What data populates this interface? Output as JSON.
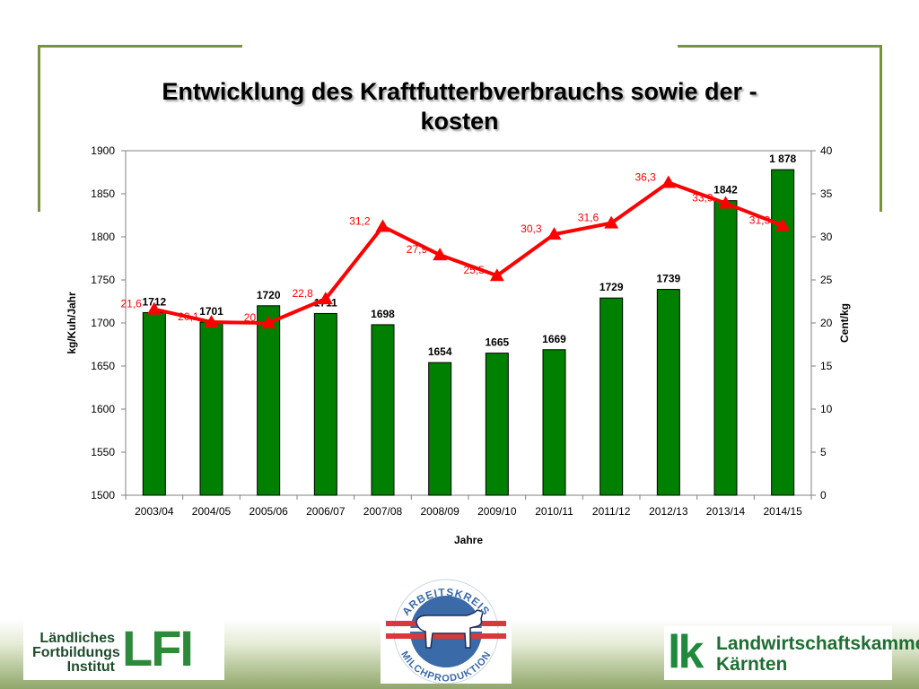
{
  "slide": {
    "title_line1": "Entwicklung des Kraftfutterbverbrauchs sowie der -",
    "title_line2": "kosten"
  },
  "chart_data": {
    "type": "bar",
    "title": "Entwicklung des Kraftfutterbverbrauchs sowie der -kosten",
    "categories": [
      "2003/04",
      "2004/05",
      "2005/06",
      "2006/07",
      "2007/08",
      "2008/09",
      "2009/10",
      "2010/11",
      "2011/12",
      "2012/13",
      "2013/14",
      "2014/15"
    ],
    "xlabel": "Jahre",
    "ylabel": "kg/Kuh/Jahr",
    "y2label": "Cent/kg",
    "ylim": [
      1500,
      1900
    ],
    "yticks": [
      1500,
      1550,
      1600,
      1650,
      1700,
      1750,
      1800,
      1850,
      1900
    ],
    "y2lim": [
      0,
      40
    ],
    "y2ticks": [
      0,
      5,
      10,
      15,
      20,
      25,
      30,
      35,
      40
    ],
    "grid": false,
    "series": [
      {
        "type": "bar",
        "axis": "left",
        "color": "#008000",
        "values": [
          1712,
          1701,
          1720,
          1711,
          1698,
          1654,
          1665,
          1669,
          1729,
          1739,
          1842,
          1878
        ],
        "labels": [
          "1712",
          "1701",
          "1720",
          "1711",
          "1698",
          "1654",
          "1665",
          "1669",
          "1729",
          "1739",
          "1842",
          "1 878"
        ]
      },
      {
        "type": "line",
        "axis": "right",
        "color": "#ff0000",
        "values": [
          21.6,
          20.1,
          20,
          22.8,
          31.2,
          27.9,
          25.5,
          30.3,
          31.6,
          36.3,
          33.9,
          31.3
        ],
        "labels": [
          "21,6",
          "20,1",
          "20",
          "22,8",
          "31,2",
          "27,9",
          "25,5",
          "30,3",
          "31,6",
          "36,3",
          "33,9",
          "31,3"
        ]
      }
    ]
  },
  "logos": {
    "lfi_line1": "Ländliches",
    "lfi_line2": "Fortbildungs",
    "lfi_line3": "Institut",
    "lfi_mark": "LFI",
    "ak_top": "ARBEITSKREIS",
    "ak_bottom": "MILCHPRODUKTION",
    "lk_mark": "lk",
    "lk_line1": "Landwirtschaftskammer",
    "lk_line2": "Kärnten"
  }
}
